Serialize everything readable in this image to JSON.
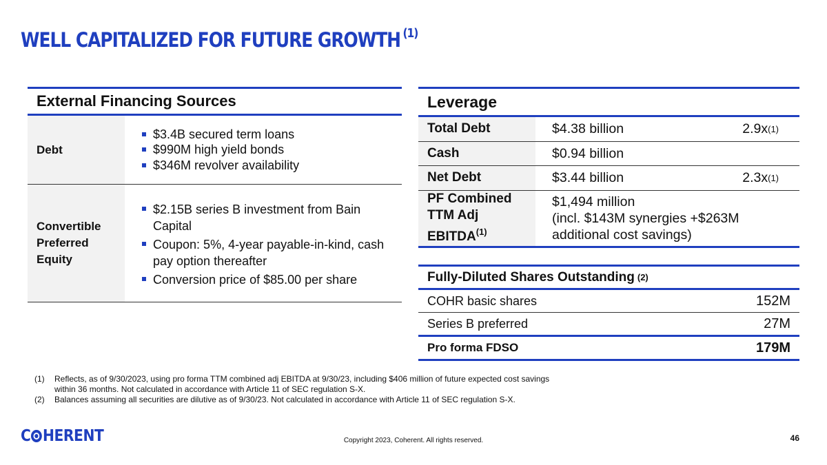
{
  "title": {
    "text": "WELL CAPITALIZED FOR FUTURE GROWTH",
    "note": "(1)"
  },
  "financing": {
    "header": "External Financing Sources",
    "debt": {
      "label": "Debt",
      "items": [
        "$3.4B secured term loans",
        "$990M high yield bonds",
        "$346M revolver availability"
      ]
    },
    "convertible": {
      "label_lines": [
        "Convertible",
        "Preferred",
        "Equity"
      ],
      "items": [
        "$2.15B series B investment from Bain Capital",
        "Coupon: 5%, 4-year payable-in-kind, cash pay option thereafter",
        "Conversion price of $85.00 per share"
      ]
    }
  },
  "leverage": {
    "header": "Leverage",
    "rows": [
      {
        "label": "Total Debt",
        "value": "$4.38 billion",
        "ratio": "2.9x",
        "note": "(1)"
      },
      {
        "label": "Cash",
        "value": "$0.94 billion",
        "ratio": "",
        "note": ""
      },
      {
        "label": "Net Debt",
        "value": "$3.44 billion",
        "ratio": "2.3x",
        "note": "(1)"
      }
    ],
    "ebitda": {
      "label_lines": [
        "PF Combined",
        "TTM Adj",
        "EBITDA"
      ],
      "label_note": "(1)",
      "value_lines": [
        "$1,494 million",
        "(incl. $143M synergies +$263M",
        "additional cost savings)"
      ]
    }
  },
  "shares": {
    "header": "Fully-Diluted Shares Outstanding",
    "header_note": "(2)",
    "rows": [
      {
        "label": "COHR basic shares",
        "value": "152M"
      },
      {
        "label": "Series B preferred",
        "value": "27M"
      }
    ],
    "total": {
      "label": "Pro forma FDSO",
      "value": "179M"
    }
  },
  "footnotes": [
    {
      "num": "(1)",
      "text": "Reflects, as of 9/30/2023, using pro forma TTM combined adj EBITDA at 9/30/23, including $406 million of future expected cost savings within 36 months. Not calculated in accordance with Article 11 of SEC regulation S-X."
    },
    {
      "num": "(2)",
      "text": "Balances assuming all securities are dilutive as of 9/30/23. Not calculated in accordance with Article 11 of SEC regulation S-X."
    }
  ],
  "logo": {
    "pre": "C",
    "post": "HERENT"
  },
  "copyright": "Copyright 2023, Coherent. All rights reserved.",
  "page_number": "46",
  "colors": {
    "accent": "#1f3fbf",
    "label_bg": "#f2f2f2"
  }
}
